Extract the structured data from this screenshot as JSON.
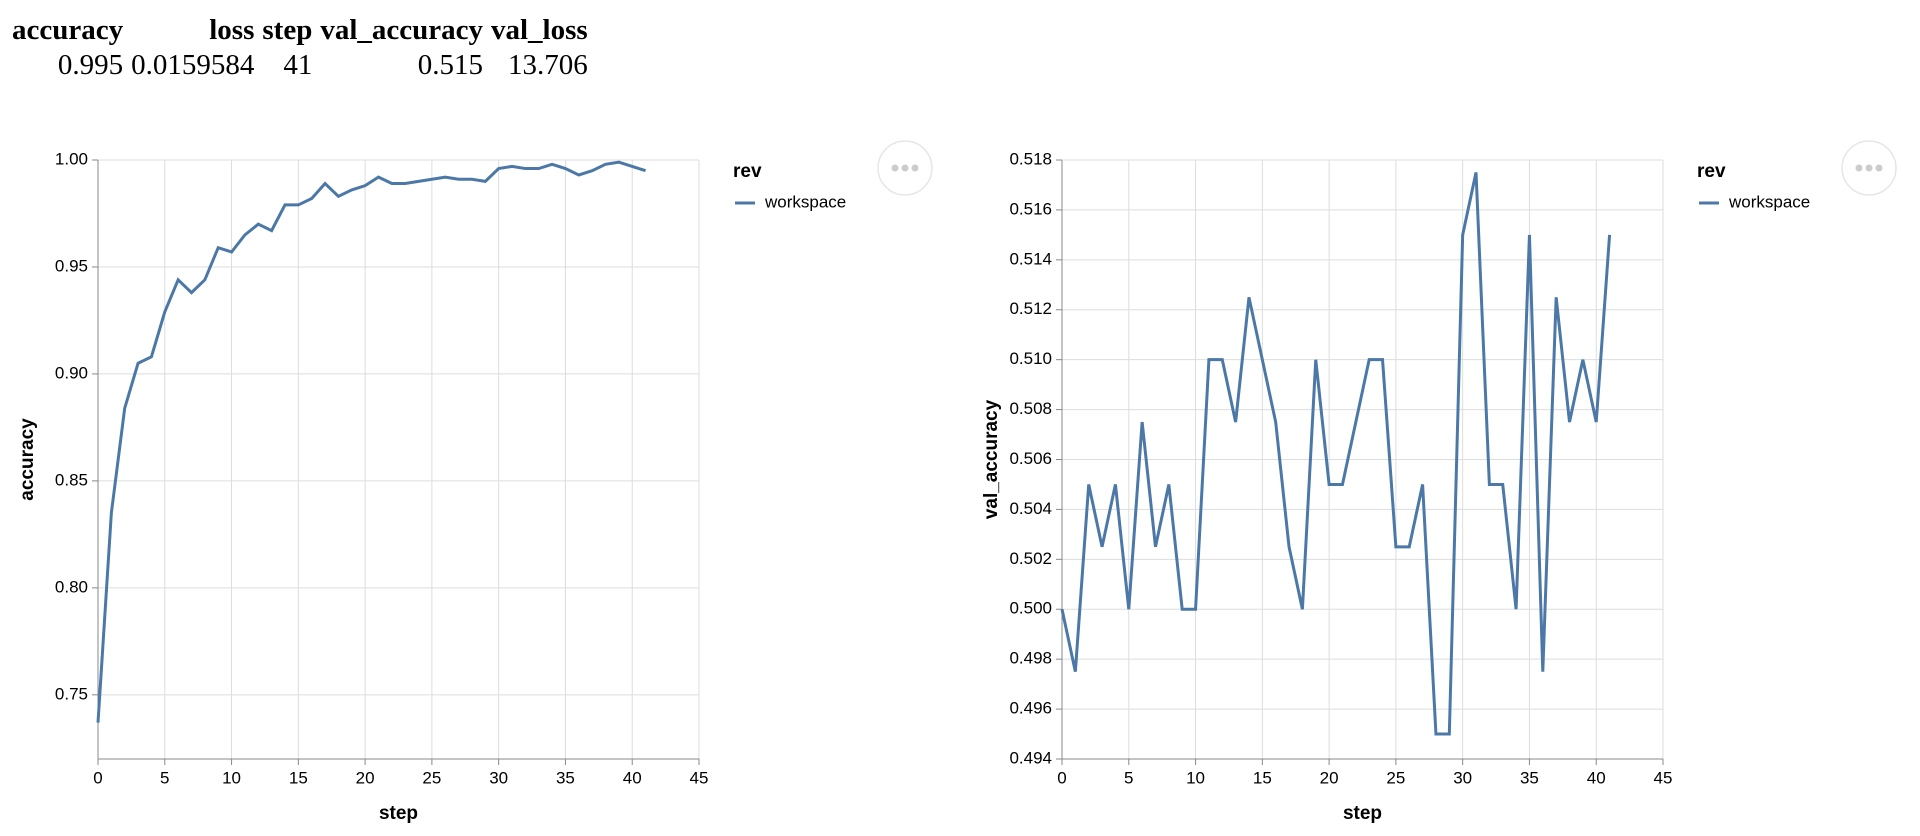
{
  "table": {
    "headers": [
      "accuracy",
      "loss",
      "step",
      "val_accuracy",
      "val_loss"
    ],
    "rows": [
      [
        0.995,
        0.0159584,
        41,
        0.515,
        13.706
      ]
    ]
  },
  "chart_data": [
    {
      "type": "line",
      "x_label": "step",
      "y_label": "accuracy",
      "legend_title": "rev",
      "legend": "right",
      "grid": true,
      "x": [
        0,
        1,
        2,
        3,
        4,
        5,
        6,
        7,
        8,
        9,
        10,
        11,
        12,
        13,
        14,
        15,
        16,
        17,
        18,
        19,
        20,
        21,
        22,
        23,
        24,
        25,
        26,
        27,
        28,
        29,
        30,
        31,
        32,
        33,
        34,
        35,
        36,
        37,
        38,
        39,
        40,
        41
      ],
      "series": [
        {
          "name": "workspace",
          "color": "#4c78a8",
          "values": [
            0.737,
            0.835,
            0.884,
            0.905,
            0.908,
            0.929,
            0.944,
            0.938,
            0.944,
            0.959,
            0.957,
            0.965,
            0.97,
            0.967,
            0.979,
            0.979,
            0.982,
            0.989,
            0.983,
            0.986,
            0.988,
            0.992,
            0.989,
            0.989,
            0.99,
            0.991,
            0.992,
            0.991,
            0.991,
            0.99,
            0.996,
            0.997,
            0.996,
            0.996,
            0.998,
            0.996,
            0.993,
            0.995,
            0.998,
            0.999,
            0.997,
            0.995
          ]
        }
      ],
      "xlim": [
        0,
        45
      ],
      "xticks": [
        0,
        5,
        10,
        15,
        20,
        25,
        30,
        35,
        40,
        45
      ],
      "ylim": [
        0.72,
        1.0
      ],
      "yticks": [
        0.75,
        {
          "value": 0.8,
          "label": "0.80"
        },
        0.85,
        {
          "value": 0.9,
          "label": "0.90"
        },
        0.95,
        {
          "value": 1.0,
          "label": "1.00"
        }
      ]
    },
    {
      "type": "line",
      "x_label": "step",
      "y_label": "val_accuracy",
      "legend_title": "rev",
      "legend": "right",
      "grid": true,
      "x": [
        0,
        1,
        2,
        3,
        4,
        5,
        6,
        7,
        8,
        9,
        10,
        11,
        12,
        13,
        14,
        15,
        16,
        17,
        18,
        19,
        20,
        21,
        22,
        23,
        24,
        25,
        26,
        27,
        28,
        29,
        30,
        31,
        32,
        33,
        34,
        35,
        36,
        37,
        38,
        39,
        40,
        41
      ],
      "series": [
        {
          "name": "workspace",
          "color": "#4c78a8",
          "values": [
            0.5,
            0.4975,
            0.505,
            0.5025,
            0.505,
            0.5,
            0.5075,
            0.5025,
            0.505,
            0.5,
            0.5,
            0.51,
            0.51,
            0.5075,
            0.5125,
            0.51,
            0.5075,
            0.5025,
            0.5,
            0.51,
            0.505,
            0.505,
            0.5075,
            0.51,
            0.51,
            0.5025,
            0.5025,
            0.505,
            0.495,
            0.495,
            0.515,
            0.5175,
            0.505,
            0.505,
            0.5,
            0.515,
            0.4975,
            0.5125,
            0.5075,
            0.51,
            0.5075,
            0.515
          ]
        }
      ],
      "xlim": [
        0,
        45
      ],
      "xticks": [
        0,
        5,
        10,
        15,
        20,
        25,
        30,
        35,
        40,
        45
      ],
      "ylim": [
        0.494,
        0.518
      ],
      "yticks": [
        0.494,
        0.496,
        0.498,
        {
          "value": 0.5,
          "label": "0.500"
        },
        0.502,
        0.504,
        0.506,
        0.508,
        {
          "value": 0.51,
          "label": "0.510"
        },
        0.512,
        0.514,
        0.516,
        0.518
      ]
    }
  ]
}
